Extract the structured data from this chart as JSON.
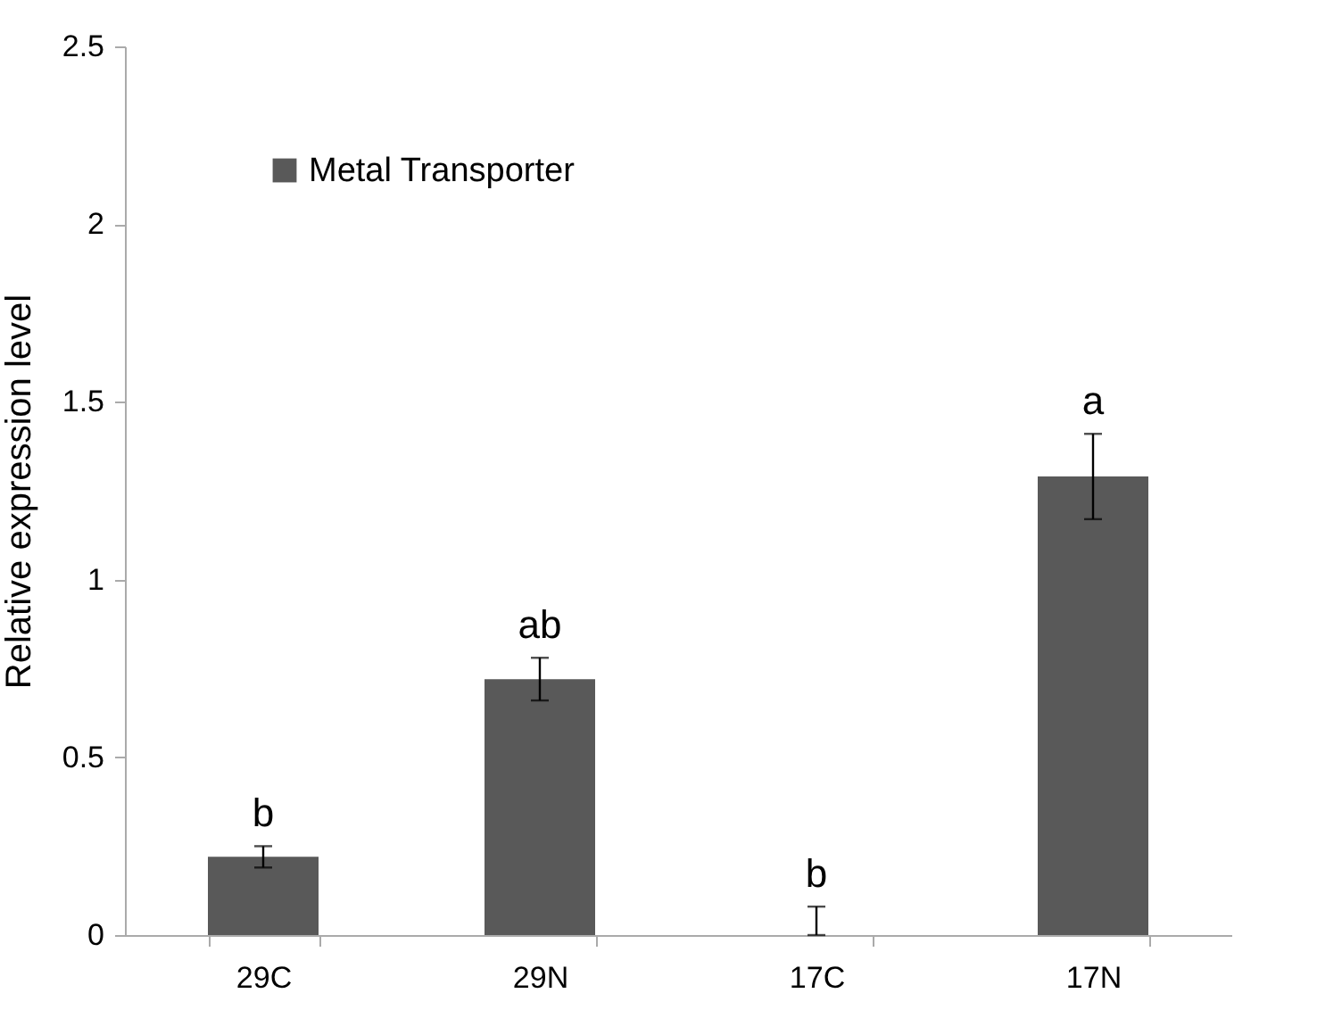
{
  "chart_data": {
    "type": "bar",
    "ylabel": "Relative expression level",
    "categories": [
      "29C",
      "29N",
      "17C",
      "17N"
    ],
    "series": [
      {
        "name": "Metal Transporter",
        "color": "#595959",
        "values": [
          0.22,
          0.72,
          0,
          1.29
        ],
        "errors": [
          0.03,
          0.06,
          [
            0,
            0.08
          ],
          0.12
        ]
      }
    ],
    "ylim": [
      0,
      2.5
    ],
    "yticks": [
      0,
      0.5,
      1,
      1.5,
      2,
      2.5
    ],
    "grid": false,
    "legend": "top left",
    "annotations": [
      {
        "text": "b",
        "x": "29C",
        "y": 0.25
      },
      {
        "text": "ab",
        "x": "29N",
        "y": 0.78
      },
      {
        "text": "b",
        "x": "17C",
        "y": 0.08
      },
      {
        "text": "a",
        "x": "17N",
        "y": 1.41
      }
    ]
  }
}
